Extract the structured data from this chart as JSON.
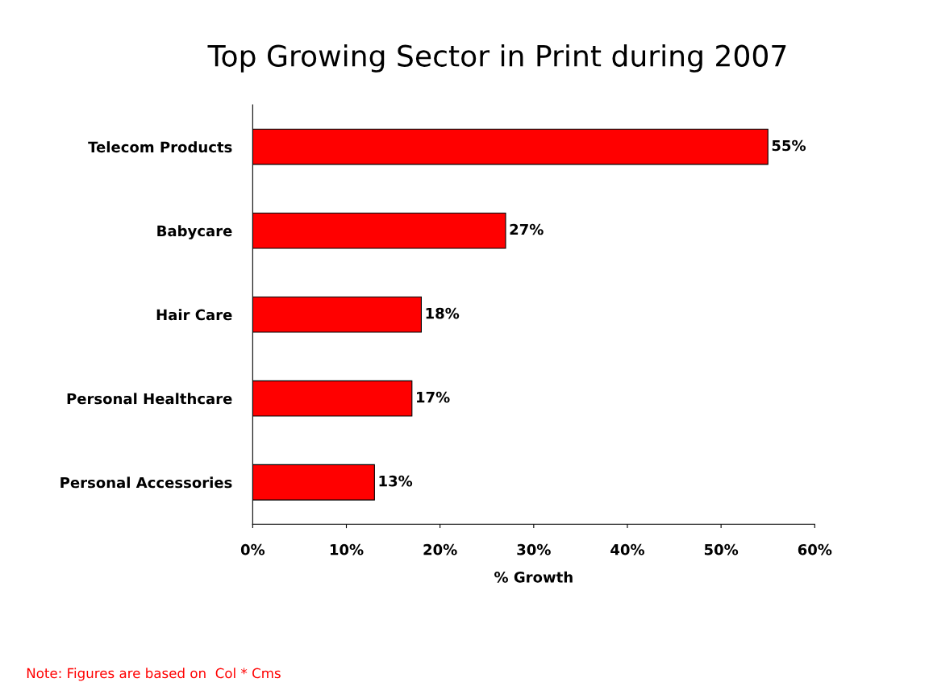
{
  "chart_data": {
    "type": "bar",
    "orientation": "horizontal",
    "title": "Top Growing Sector in Print during 2007",
    "categories": [
      "Telecom Products",
      "Babycare",
      "Hair Care",
      "Personal Healthcare",
      "Personal Accessories"
    ],
    "values": [
      55,
      27,
      18,
      17,
      13
    ],
    "value_labels": [
      "55%",
      "27%",
      "18%",
      "17%",
      "13%"
    ],
    "color": "#ff0000",
    "xlabel": "% Growth",
    "xlim": [
      0,
      60
    ],
    "xticks": [
      {
        "value": 0,
        "label": "0%"
      },
      {
        "value": 10,
        "label": "10%"
      },
      {
        "value": 20,
        "label": "20%"
      },
      {
        "value": 30,
        "label": "30%"
      },
      {
        "value": 40,
        "label": "40%"
      },
      {
        "value": 50,
        "label": "50%"
      },
      {
        "value": 60,
        "label": "60%"
      }
    ],
    "grid": false,
    "legend": false,
    "annotations": [
      "Note: Figures are based on  Col * Cms"
    ]
  }
}
